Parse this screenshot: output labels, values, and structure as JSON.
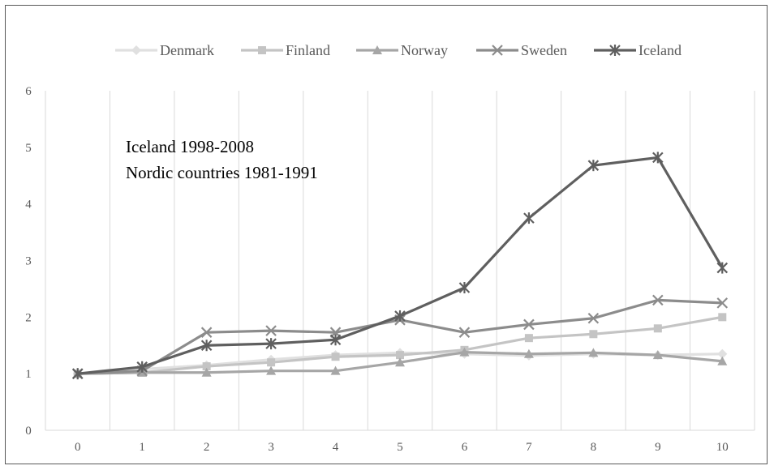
{
  "chart_data": {
    "type": "line",
    "x": [
      0,
      1,
      2,
      3,
      4,
      5,
      6,
      7,
      8,
      9,
      10
    ],
    "xlim": [
      0,
      10
    ],
    "ylim": [
      0,
      6
    ],
    "yticks": [
      0,
      1,
      2,
      3,
      4,
      5,
      6
    ],
    "grid": "vertical",
    "legend_position": "top",
    "annotations": [
      "Iceland 1998-2008",
      "Nordic countries 1981-1991"
    ],
    "series": [
      {
        "name": "Denmark",
        "marker": "diamond",
        "color": "#e0e0e0",
        "values": [
          1.0,
          1.08,
          1.15,
          1.25,
          1.33,
          1.37,
          1.35,
          1.32,
          1.35,
          1.33,
          1.35
        ]
      },
      {
        "name": "Finland",
        "marker": "square",
        "color": "#c4c4c4",
        "values": [
          1.0,
          1.02,
          1.13,
          1.2,
          1.3,
          1.33,
          1.42,
          1.63,
          1.7,
          1.8,
          2.0
        ]
      },
      {
        "name": "Norway",
        "marker": "triangle",
        "color": "#a6a6a6",
        "values": [
          1.0,
          1.02,
          1.02,
          1.05,
          1.05,
          1.2,
          1.38,
          1.35,
          1.37,
          1.33,
          1.22
        ]
      },
      {
        "name": "Sweden",
        "marker": "x",
        "color": "#8c8c8c",
        "values": [
          1.0,
          1.05,
          1.73,
          1.76,
          1.73,
          1.95,
          1.73,
          1.87,
          1.98,
          2.3,
          2.25
        ]
      },
      {
        "name": "Iceland",
        "marker": "star",
        "color": "#5f5f5f",
        "values": [
          1.0,
          1.12,
          1.5,
          1.53,
          1.6,
          2.02,
          2.52,
          3.75,
          4.68,
          4.82,
          2.87
        ]
      }
    ]
  }
}
